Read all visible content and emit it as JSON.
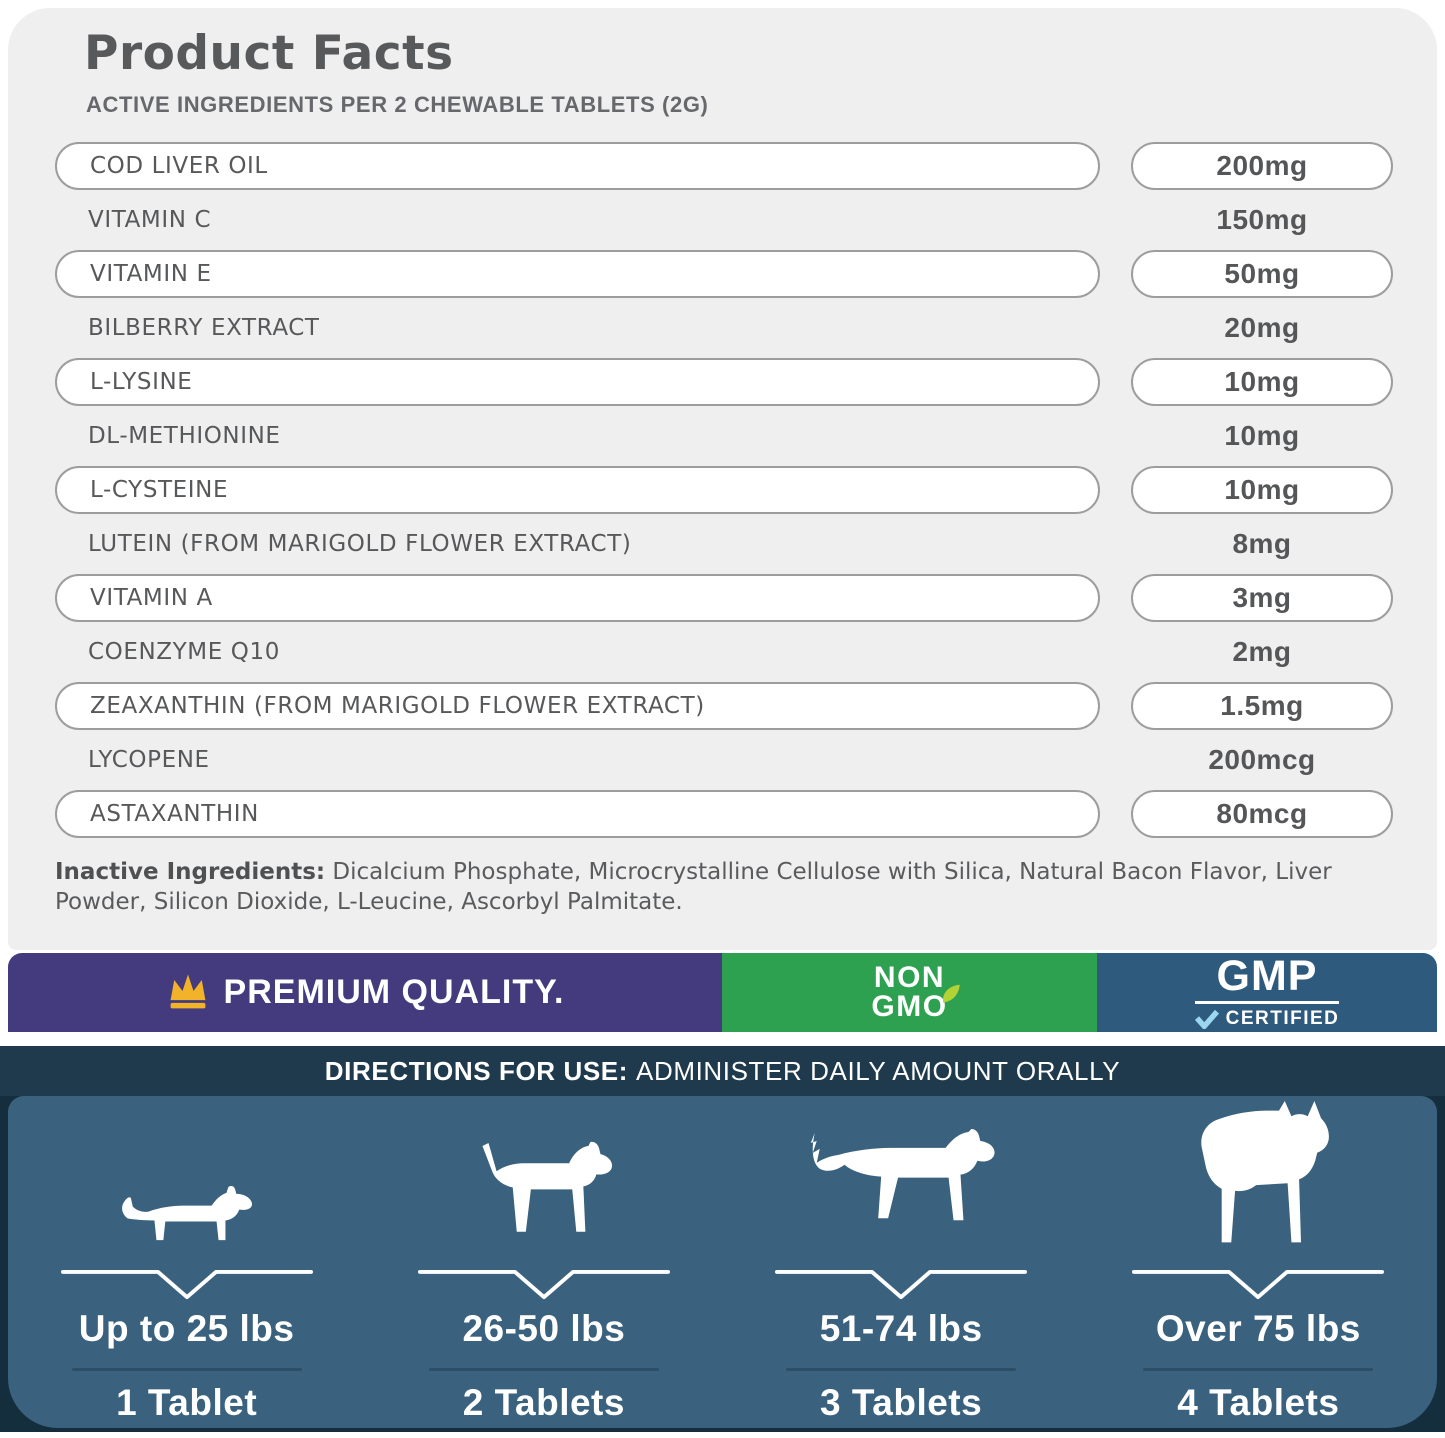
{
  "header": {
    "title": "Product Facts",
    "subtitle": "ACTIVE INGREDIENTS PER 2 CHEWABLE TABLETS (2G)"
  },
  "ingredients": [
    {
      "name": "COD LIVER OIL",
      "amount": "200mg",
      "pill": true
    },
    {
      "name": "VITAMIN C",
      "amount": "150mg",
      "pill": false
    },
    {
      "name": "VITAMIN E",
      "amount": "50mg",
      "pill": true
    },
    {
      "name": "BILBERRY EXTRACT",
      "amount": "20mg",
      "pill": false
    },
    {
      "name": "L-LYSINE",
      "amount": "10mg",
      "pill": true
    },
    {
      "name": "DL-METHIONINE",
      "amount": "10mg",
      "pill": false
    },
    {
      "name": "L-CYSTEINE",
      "amount": "10mg",
      "pill": true
    },
    {
      "name": "LUTEIN (FROM MARIGOLD FLOWER EXTRACT)",
      "amount": "8mg",
      "pill": false
    },
    {
      "name": "VITAMIN A",
      "amount": "3mg",
      "pill": true
    },
    {
      "name": "COENZYME Q10",
      "amount": "2mg",
      "pill": false
    },
    {
      "name": "ZEAXANTHIN (FROM MARIGOLD FLOWER EXTRACT)",
      "amount": "1.5mg",
      "pill": true
    },
    {
      "name": "LYCOPENE",
      "amount": "200mcg",
      "pill": false
    },
    {
      "name": "ASTAXANTHIN",
      "amount": "80mcg",
      "pill": true
    }
  ],
  "inactive_ingredients": {
    "label": "Inactive Ingredients:",
    "text": " Dicalcium Phosphate, Microcrystalline Cellulose with Silica, Natural Bacon Flavor, Liver Powder, Silicon Dioxide, L-Leucine, Ascorbyl Palmitate."
  },
  "badges": {
    "premium": {
      "label": "PREMIUM QUALITY.",
      "bg_color": "#433b7d",
      "crown_color": "#f2b32a"
    },
    "non_gmo": {
      "line1": "NON",
      "line2": "GMO",
      "bg_color": "#2da150",
      "leaf_color": "#b2d235"
    },
    "gmp": {
      "title": "GMP",
      "subtitle": "CERTIFIED",
      "bg_color": "#2e5b7d",
      "check_color": "#9bd7ef"
    }
  },
  "directions": {
    "label": "DIRECTIONS FOR USE:",
    "text": "ADMINISTER DAILY AMOUNT ORALLY"
  },
  "dosage_chart": [
    {
      "dog": "dachshund",
      "weight": "Up to 25 lbs",
      "tablets": "1 Tablet"
    },
    {
      "dog": "beagle",
      "weight": "26-50 lbs",
      "tablets": "2 Tablets"
    },
    {
      "dog": "retriever",
      "weight": "51-74 lbs",
      "tablets": "3 Tablets"
    },
    {
      "dog": "boxer",
      "weight": "Over 75 lbs",
      "tablets": "4 Tablets"
    }
  ],
  "colors": {
    "panel_bg": "#efeff0",
    "pill_border": "#9c9d9e",
    "text_dark": "#57585a",
    "directions_band": "#1f3a4c",
    "dose_panel": "#3a627e",
    "dose_bg_dark": "#152e3d"
  }
}
